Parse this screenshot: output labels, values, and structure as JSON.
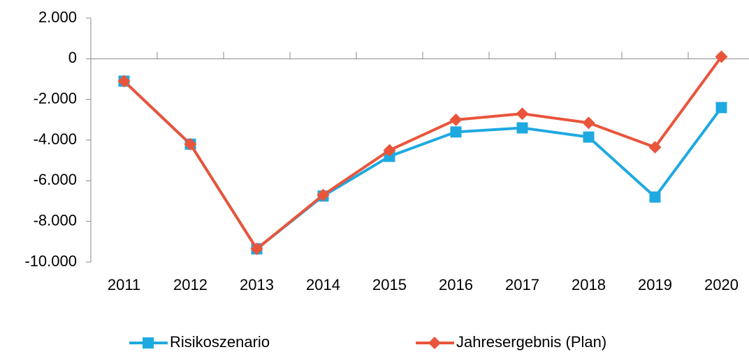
{
  "chart_data": {
    "type": "line",
    "categories": [
      "2011",
      "2012",
      "2013",
      "2014",
      "2015",
      "2016",
      "2017",
      "2018",
      "2019",
      "2020"
    ],
    "series": [
      {
        "name": "Risikoszenario",
        "color": "#1fa9e1",
        "marker": "square",
        "values": [
          -1100,
          -4200,
          -9350,
          -6750,
          -4800,
          -3600,
          -3400,
          -3850,
          -6800,
          -2400
        ]
      },
      {
        "name": "Jahresergebnis (Plan)",
        "color": "#e9553b",
        "marker": "diamond",
        "values": [
          -1100,
          -4200,
          -9350,
          -6700,
          -4500,
          -3000,
          -2700,
          -3150,
          -4350,
          100
        ]
      }
    ],
    "ylim": [
      -10000,
      2000
    ],
    "yticks": [
      {
        "value": -10000,
        "label": "-10.000"
      },
      {
        "value": -8000,
        "label": "-8.000"
      },
      {
        "value": -6000,
        "label": "-6.000"
      },
      {
        "value": -4000,
        "label": "-4.000"
      },
      {
        "value": -2000,
        "label": "-2.000"
      },
      0,
      {
        "value": 2000,
        "label": "2.000"
      }
    ],
    "grid": false,
    "legend": "bottom"
  }
}
